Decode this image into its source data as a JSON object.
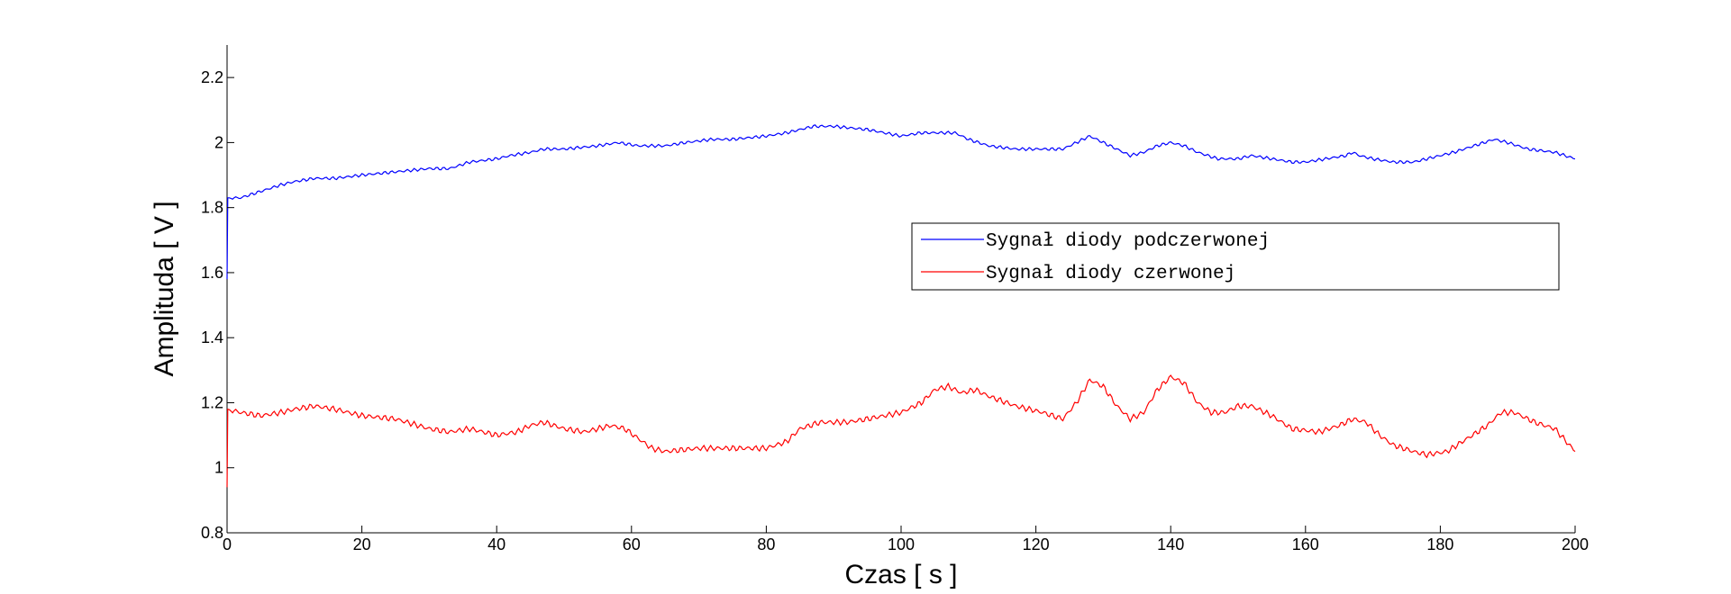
{
  "chart_data": {
    "type": "line",
    "xlabel": "Czas [ s ]",
    "ylabel": "Amplituda [ V ]",
    "xlim": [
      0,
      200
    ],
    "ylim": [
      0.8,
      2.3
    ],
    "x_ticks": [
      0,
      20,
      40,
      60,
      80,
      100,
      120,
      140,
      160,
      180,
      200
    ],
    "x_tick_labels": [
      "0",
      "20",
      "40",
      "60",
      "80",
      "100",
      "120",
      "140",
      "160",
      "180",
      "200"
    ],
    "y_ticks": [
      0.8,
      1.0,
      1.2,
      1.4,
      1.6,
      1.8,
      2.0,
      2.2
    ],
    "y_tick_labels": [
      "0.8",
      "1",
      "1.2",
      "1.4",
      "1.6",
      "1.8",
      "2",
      "2.2"
    ],
    "grid": false,
    "legend_position": "center-right",
    "series": [
      {
        "name": "Sygnał diody podczerwonej",
        "color": "#0000ff",
        "x": [
          0,
          0.1,
          2,
          5,
          8,
          10,
          13,
          16,
          20,
          25,
          30,
          33,
          36,
          40,
          42,
          45,
          47,
          50,
          55,
          58,
          61,
          65,
          68,
          72,
          75,
          80,
          83,
          85,
          87,
          90,
          95,
          100,
          103,
          106,
          108,
          110,
          113,
          117,
          120,
          124,
          126,
          128,
          130,
          132,
          134,
          136,
          138,
          140,
          142,
          144,
          147,
          150,
          152,
          155,
          158,
          160,
          163,
          166,
          167,
          168,
          170,
          173,
          176,
          178,
          182,
          185,
          188,
          190,
          193,
          197,
          200
        ],
        "y": [
          1.58,
          1.83,
          1.83,
          1.85,
          1.87,
          1.88,
          1.89,
          1.89,
          1.9,
          1.91,
          1.92,
          1.92,
          1.94,
          1.95,
          1.96,
          1.97,
          1.98,
          1.98,
          1.99,
          2.0,
          1.99,
          1.99,
          2.0,
          2.01,
          2.01,
          2.02,
          2.03,
          2.04,
          2.05,
          2.05,
          2.04,
          2.02,
          2.03,
          2.03,
          2.03,
          2.01,
          1.99,
          1.98,
          1.98,
          1.98,
          2.0,
          2.02,
          2.0,
          1.98,
          1.96,
          1.97,
          1.99,
          2.0,
          1.99,
          1.97,
          1.95,
          1.95,
          1.96,
          1.95,
          1.94,
          1.94,
          1.95,
          1.96,
          1.97,
          1.96,
          1.95,
          1.94,
          1.94,
          1.95,
          1.97,
          1.99,
          2.01,
          2.0,
          1.98,
          1.97,
          1.95
        ]
      },
      {
        "name": "Sygnał diody czerwonej",
        "color": "#ff0000",
        "x": [
          0,
          0.1,
          2,
          5,
          8,
          10,
          13,
          16,
          20,
          25,
          30,
          33,
          36,
          40,
          43,
          45,
          47,
          50,
          53,
          57,
          59,
          61,
          63,
          65,
          70,
          75,
          80,
          83,
          85,
          88,
          92,
          95,
          100,
          103,
          105,
          107,
          109,
          111,
          113,
          117,
          121,
          124,
          126,
          128,
          130,
          132,
          134,
          136,
          138,
          140,
          142,
          144,
          146,
          148,
          150,
          152,
          155,
          158,
          162,
          165,
          167,
          169,
          171,
          173,
          176,
          178,
          181,
          184,
          187,
          189,
          191,
          194,
          197,
          200
        ],
        "y": [
          0.94,
          1.18,
          1.17,
          1.16,
          1.17,
          1.18,
          1.19,
          1.18,
          1.16,
          1.15,
          1.12,
          1.11,
          1.12,
          1.1,
          1.11,
          1.13,
          1.14,
          1.12,
          1.11,
          1.13,
          1.12,
          1.09,
          1.06,
          1.05,
          1.06,
          1.06,
          1.06,
          1.08,
          1.12,
          1.14,
          1.14,
          1.15,
          1.17,
          1.2,
          1.24,
          1.25,
          1.23,
          1.24,
          1.22,
          1.19,
          1.17,
          1.15,
          1.2,
          1.27,
          1.25,
          1.19,
          1.15,
          1.17,
          1.24,
          1.28,
          1.26,
          1.2,
          1.17,
          1.17,
          1.19,
          1.19,
          1.16,
          1.12,
          1.11,
          1.13,
          1.15,
          1.14,
          1.1,
          1.07,
          1.05,
          1.04,
          1.05,
          1.09,
          1.13,
          1.17,
          1.17,
          1.14,
          1.12,
          1.05
        ]
      }
    ]
  }
}
